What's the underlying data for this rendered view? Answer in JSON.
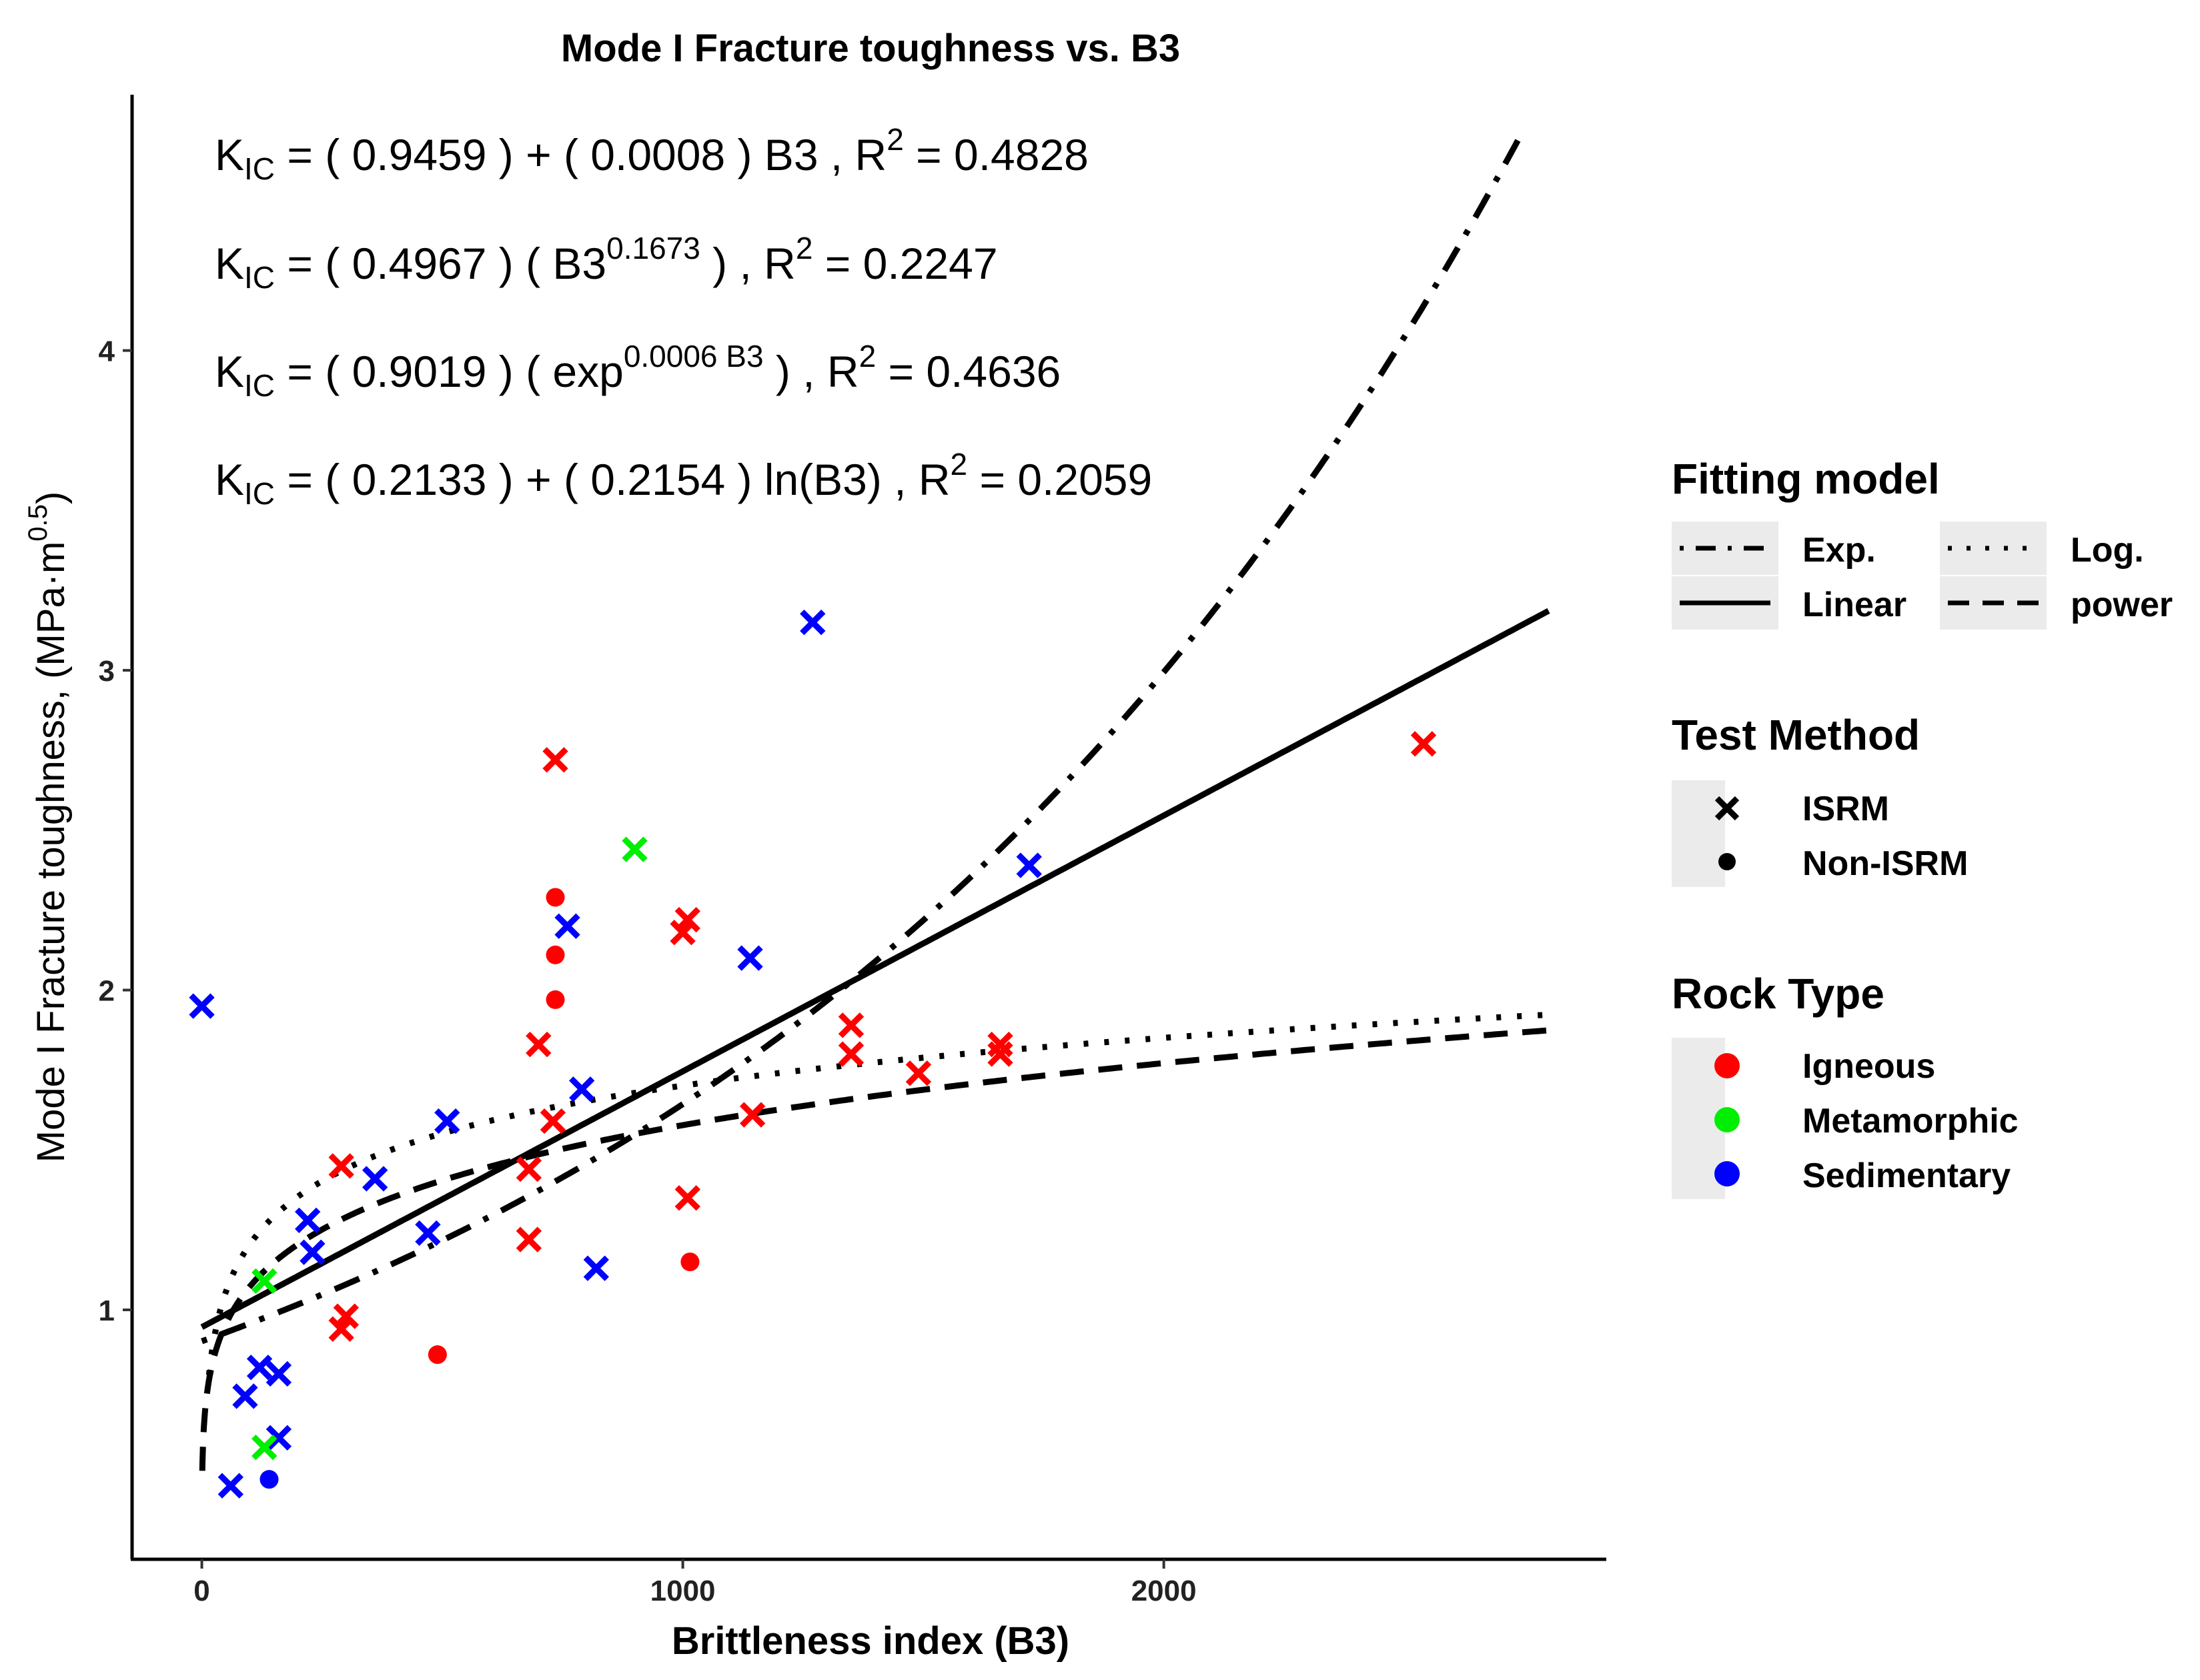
{
  "chart_data": {
    "type": "scatter",
    "title": "Mode I Fracture toughness vs. B3",
    "xlabel": "Brittleness index (B3)",
    "ylabel": "Mode I Fracture toughness, (MPa·m^0.5)",
    "ylabel_main": "Mode I Fracture toughness, (MPa·m",
    "ylabel_exp": "0.5",
    "ylabel_close": ")",
    "xlim": [
      -145,
      2920
    ],
    "ylim": [
      0.22,
      4.8
    ],
    "x_ticks": [
      0,
      1000,
      2000
    ],
    "x_tick_labels": [
      "0",
      "1000",
      "2000"
    ],
    "y_ticks": [
      1,
      2,
      3,
      4
    ],
    "y_tick_labels": [
      "1",
      "2",
      "3",
      "4"
    ],
    "grid": false,
    "equations": [
      {
        "parts": [
          "K",
          "IC",
          " =  ( 0.9459 ) +  ( 0.0008 ) B3 ,  R",
          "2",
          " = 0.4828"
        ]
      },
      {
        "parts": [
          "K",
          "IC",
          " =  ( 0.4967 ) ( B3",
          "0.1673",
          " ) ,  R",
          "2",
          " = 0.2247"
        ]
      },
      {
        "parts": [
          "K",
          "IC",
          " =  ( 0.9019 ) ( exp",
          "0.0006 B3",
          " ) ,  R",
          "2",
          " = 0.4636"
        ]
      },
      {
        "parts": [
          "K",
          "IC",
          " =  ( 0.2133 ) +  ( 0.2154 ) ln(B3) ,  R",
          "2",
          " = 0.2059"
        ]
      }
    ],
    "fit_lines": [
      {
        "name": "Linear",
        "model": "linear",
        "a": 0.9459,
        "b": 0.0008,
        "x_range": [
          0,
          2800
        ]
      },
      {
        "name": "power",
        "model": "power",
        "a": 0.4967,
        "b": 0.1673,
        "x_range": [
          1,
          2800
        ]
      },
      {
        "name": "Exp.",
        "model": "exp",
        "a": 0.9019,
        "b": 0.0006,
        "x_range": [
          0,
          2750
        ]
      },
      {
        "name": "Log.",
        "model": "log",
        "a": 0.2133,
        "b": 0.2154,
        "x_range": [
          15,
          2800
        ]
      }
    ],
    "points": [
      {
        "x": 0,
        "y": 1.95,
        "rock": "Sedimentary",
        "method": "ISRM"
      },
      {
        "x": 60,
        "y": 0.45,
        "rock": "Sedimentary",
        "method": "ISRM"
      },
      {
        "x": 90,
        "y": 0.73,
        "rock": "Sedimentary",
        "method": "ISRM"
      },
      {
        "x": 120,
        "y": 0.82,
        "rock": "Sedimentary",
        "method": "ISRM"
      },
      {
        "x": 160,
        "y": 0.8,
        "rock": "Sedimentary",
        "method": "ISRM"
      },
      {
        "x": 160,
        "y": 0.6,
        "rock": "Sedimentary",
        "method": "ISRM"
      },
      {
        "x": 220,
        "y": 1.28,
        "rock": "Sedimentary",
        "method": "ISRM"
      },
      {
        "x": 230,
        "y": 1.18,
        "rock": "Sedimentary",
        "method": "ISRM"
      },
      {
        "x": 360,
        "y": 1.41,
        "rock": "Sedimentary",
        "method": "ISRM"
      },
      {
        "x": 470,
        "y": 1.24,
        "rock": "Sedimentary",
        "method": "ISRM"
      },
      {
        "x": 510,
        "y": 1.59,
        "rock": "Sedimentary",
        "method": "ISRM"
      },
      {
        "x": 760,
        "y": 2.2,
        "rock": "Sedimentary",
        "method": "ISRM"
      },
      {
        "x": 790,
        "y": 1.69,
        "rock": "Sedimentary",
        "method": "ISRM"
      },
      {
        "x": 820,
        "y": 1.13,
        "rock": "Sedimentary",
        "method": "ISRM"
      },
      {
        "x": 1140,
        "y": 2.1,
        "rock": "Sedimentary",
        "method": "ISRM"
      },
      {
        "x": 1270,
        "y": 3.15,
        "rock": "Sedimentary",
        "method": "ISRM"
      },
      {
        "x": 1720,
        "y": 2.39,
        "rock": "Sedimentary",
        "method": "ISRM"
      },
      {
        "x": 140,
        "y": 0.47,
        "rock": "Sedimentary",
        "method": "Non-ISRM"
      },
      {
        "x": 130,
        "y": 1.09,
        "rock": "Metamorphic",
        "method": "ISRM"
      },
      {
        "x": 130,
        "y": 0.57,
        "rock": "Metamorphic",
        "method": "ISRM"
      },
      {
        "x": 900,
        "y": 2.44,
        "rock": "Metamorphic",
        "method": "ISRM"
      },
      {
        "x": 290,
        "y": 1.45,
        "rock": "Igneous",
        "method": "ISRM"
      },
      {
        "x": 290,
        "y": 0.94,
        "rock": "Igneous",
        "method": "ISRM"
      },
      {
        "x": 300,
        "y": 0.98,
        "rock": "Igneous",
        "method": "ISRM"
      },
      {
        "x": 680,
        "y": 1.22,
        "rock": "Igneous",
        "method": "ISRM"
      },
      {
        "x": 680,
        "y": 1.44,
        "rock": "Igneous",
        "method": "ISRM"
      },
      {
        "x": 700,
        "y": 1.83,
        "rock": "Igneous",
        "method": "ISRM"
      },
      {
        "x": 730,
        "y": 1.59,
        "rock": "Igneous",
        "method": "ISRM"
      },
      {
        "x": 735,
        "y": 2.72,
        "rock": "Igneous",
        "method": "ISRM"
      },
      {
        "x": 1000,
        "y": 2.18,
        "rock": "Igneous",
        "method": "ISRM"
      },
      {
        "x": 1010,
        "y": 2.22,
        "rock": "Igneous",
        "method": "ISRM"
      },
      {
        "x": 1010,
        "y": 1.35,
        "rock": "Igneous",
        "method": "ISRM"
      },
      {
        "x": 1145,
        "y": 1.61,
        "rock": "Igneous",
        "method": "ISRM"
      },
      {
        "x": 1350,
        "y": 1.89,
        "rock": "Igneous",
        "method": "ISRM"
      },
      {
        "x": 1350,
        "y": 1.8,
        "rock": "Igneous",
        "method": "ISRM"
      },
      {
        "x": 1490,
        "y": 1.74,
        "rock": "Igneous",
        "method": "ISRM"
      },
      {
        "x": 1660,
        "y": 1.8,
        "rock": "Igneous",
        "method": "ISRM"
      },
      {
        "x": 1660,
        "y": 1.83,
        "rock": "Igneous",
        "method": "ISRM"
      },
      {
        "x": 2540,
        "y": 2.77,
        "rock": "Igneous",
        "method": "ISRM"
      },
      {
        "x": 490,
        "y": 0.86,
        "rock": "Igneous",
        "method": "Non-ISRM"
      },
      {
        "x": 735,
        "y": 2.29,
        "rock": "Igneous",
        "method": "Non-ISRM"
      },
      {
        "x": 735,
        "y": 2.11,
        "rock": "Igneous",
        "method": "Non-ISRM"
      },
      {
        "x": 735,
        "y": 1.97,
        "rock": "Igneous",
        "method": "Non-ISRM"
      },
      {
        "x": 1015,
        "y": 1.15,
        "rock": "Igneous",
        "method": "Non-ISRM"
      }
    ],
    "legends": {
      "fitting_model": {
        "title": "Fitting model",
        "items": [
          {
            "label": "Exp.",
            "style": "dotdash"
          },
          {
            "label": "Log.",
            "style": "dotted"
          },
          {
            "label": "Linear",
            "style": "solid"
          },
          {
            "label": "power",
            "style": "dashed"
          }
        ]
      },
      "test_method": {
        "title": "Test Method",
        "items": [
          {
            "label": "ISRM",
            "shape": "cross"
          },
          {
            "label": "Non-ISRM",
            "shape": "dot"
          }
        ]
      },
      "rock_type": {
        "title": "Rock Type",
        "items": [
          {
            "label": "Igneous",
            "color": "#ff0000"
          },
          {
            "label": "Metamorphic",
            "color": "#00ee00"
          },
          {
            "label": "Sedimentary",
            "color": "#0000ff"
          }
        ]
      }
    },
    "legend_position": "right",
    "colors": {
      "Igneous": "#ff0000",
      "Metamorphic": "#00ee00",
      "Sedimentary": "#0000ff"
    }
  }
}
